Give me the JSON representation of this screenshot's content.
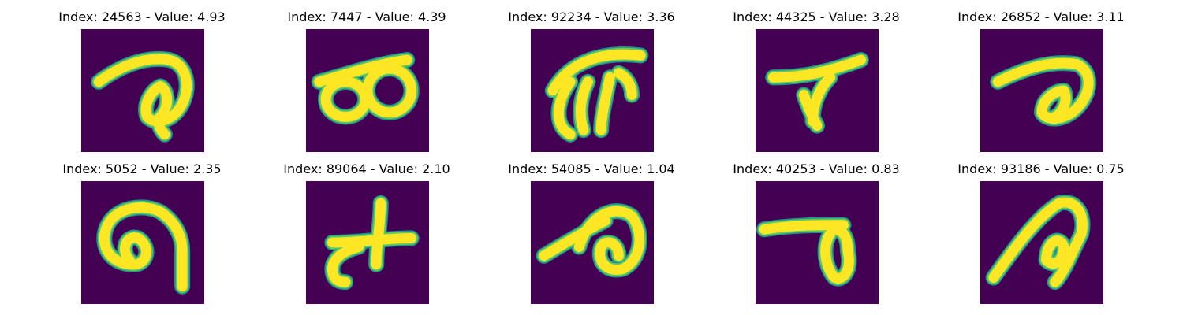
{
  "colors": {
    "background": "#440154",
    "stroke_core": "#fde725",
    "stroke_edge_outer": "#21918c",
    "stroke_edge_mid": "#5ec962"
  },
  "panels": [
    {
      "title": "Index: 24563 - Value: 4.93"
    },
    {
      "title": "Index: 7447 - Value: 4.39"
    },
    {
      "title": "Index: 92234 - Value: 3.36"
    },
    {
      "title": "Index: 44325 - Value: 3.28"
    },
    {
      "title": "Index: 26852 - Value: 3.11"
    },
    {
      "title": "Index: 5052 - Value: 2.35"
    },
    {
      "title": "Index: 89064 - Value: 2.10"
    },
    {
      "title": "Index: 54085 - Value: 1.04"
    },
    {
      "title": "Index: 40253 - Value: 0.83"
    },
    {
      "title": "Index: 93186 - Value: 0.75"
    }
  ]
}
